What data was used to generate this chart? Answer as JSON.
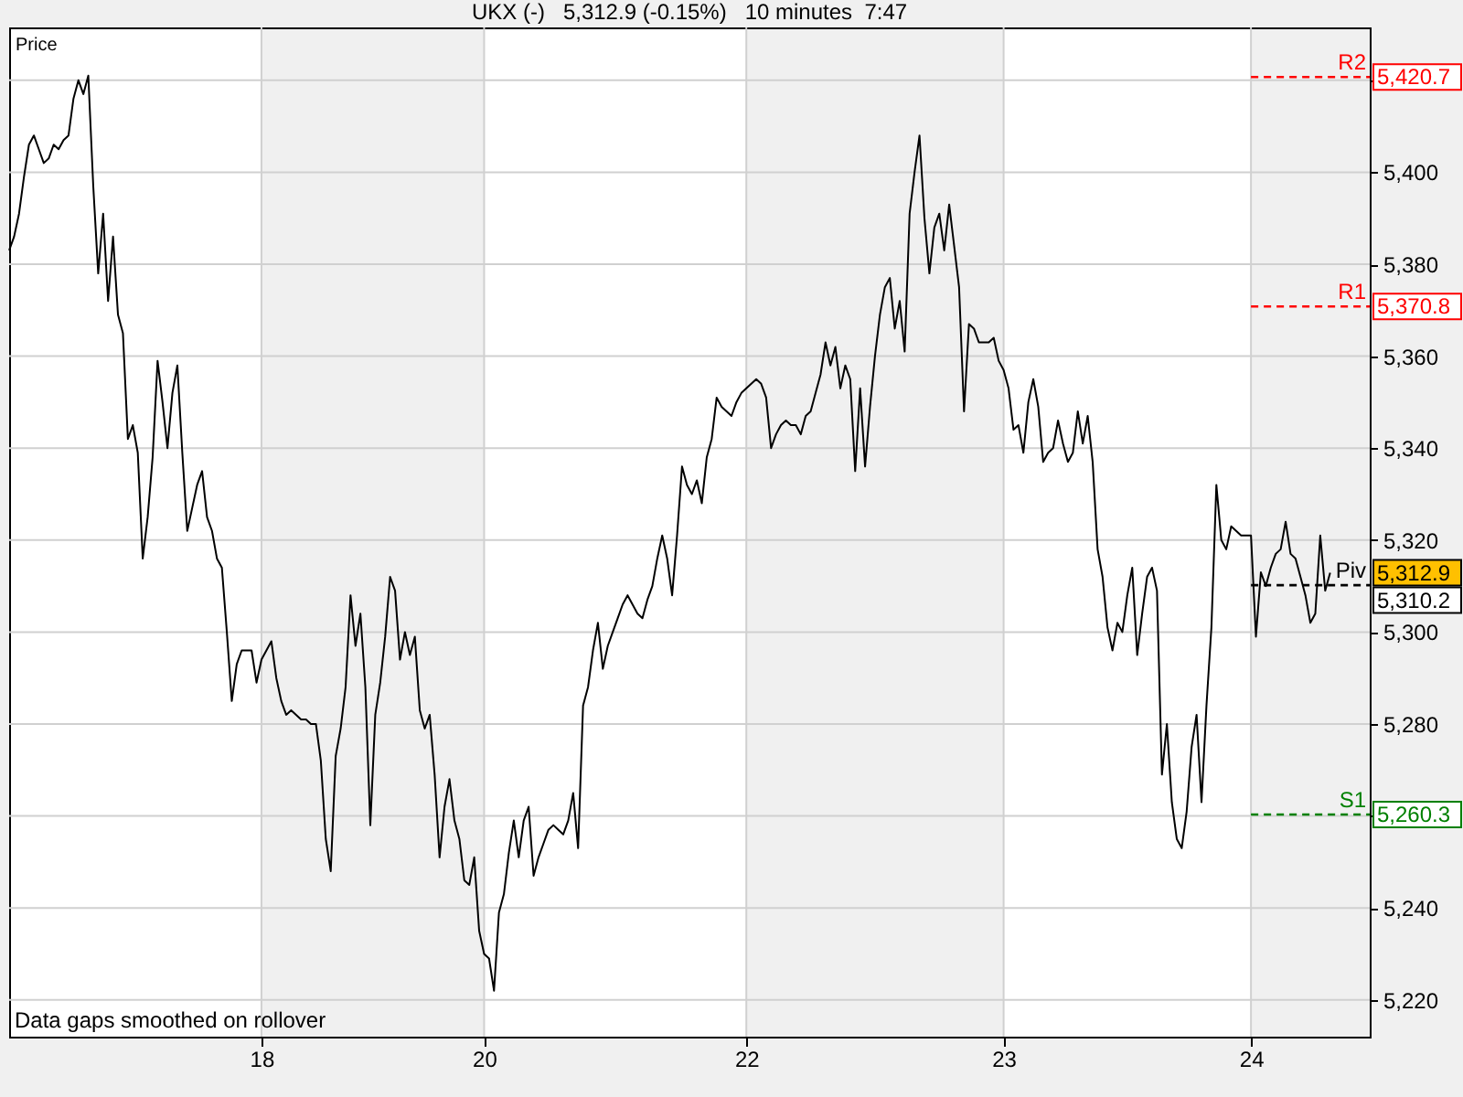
{
  "chart_data": {
    "type": "line",
    "title": "UKX (-)   5,312.9 (-0.15%)   10 minutes  7:47",
    "ylabel": "Price",
    "annotations": [
      "Data gaps smoothed on rollover",
      "5,312.9",
      "5,420.7",
      "5,370.8",
      "5,310.2",
      "5,260.3"
    ],
    "categories": [
      null,
      null,
      null,
      null,
      null,
      null,
      null,
      null,
      null,
      null,
      null,
      null,
      null,
      null,
      null,
      null,
      null,
      null,
      null,
      null,
      null,
      null,
      null,
      null,
      null,
      null,
      null,
      null,
      null,
      null,
      null,
      null,
      null,
      null,
      null,
      null,
      null,
      null,
      null,
      null,
      null,
      null,
      null,
      null,
      null,
      null,
      null,
      null,
      null,
      null,
      null,
      "18",
      null,
      null,
      null,
      null,
      null,
      null,
      null,
      null,
      null,
      null,
      null,
      null,
      null,
      null,
      null,
      null,
      null,
      null,
      null,
      null,
      null,
      null,
      null,
      null,
      null,
      null,
      null,
      null,
      null,
      null,
      null,
      null,
      null,
      null,
      null,
      null,
      null,
      null,
      null,
      null,
      null,
      null,
      null,
      null,
      "20",
      null,
      null,
      null,
      null,
      null,
      null,
      null,
      null,
      null,
      null,
      null,
      null,
      null,
      null,
      null,
      null,
      null,
      null,
      null,
      null,
      null,
      null,
      null,
      null,
      null,
      null,
      null,
      null,
      null,
      null,
      null,
      null,
      null,
      null,
      null,
      null,
      null,
      null,
      null,
      null,
      null,
      null,
      null,
      null,
      null,
      null,
      null,
      null,
      null,
      null,
      null,
      null,
      "22",
      null,
      null,
      null,
      null,
      null,
      null,
      null,
      null,
      null,
      null,
      null,
      null,
      null,
      null,
      null,
      null,
      null,
      null,
      null,
      null,
      null,
      null,
      null,
      null,
      null,
      null,
      null,
      null,
      null,
      null,
      null,
      null,
      null,
      null,
      null,
      null,
      null,
      null,
      null,
      null,
      null,
      null,
      null,
      null,
      null,
      null,
      null,
      null,
      null,
      null,
      null,
      "23",
      null,
      null,
      null,
      null,
      null,
      null,
      null,
      null,
      null,
      null,
      null,
      null,
      null,
      null,
      null,
      null,
      null,
      null,
      null,
      null,
      null,
      null,
      null,
      null,
      null,
      null,
      null,
      null,
      null,
      null,
      null,
      null,
      null,
      null,
      null,
      null,
      null,
      null,
      null,
      null,
      null,
      null,
      null,
      null,
      null,
      null,
      null,
      null,
      null,
      "24",
      null,
      null,
      null,
      null,
      null,
      null,
      null,
      null,
      null,
      null,
      null,
      null,
      null,
      null,
      null,
      null,
      null,
      null,
      null,
      null,
      null,
      null,
      null,
      null
    ],
    "series": [
      {
        "color": "#000000",
        "values": [
          5383,
          5386,
          5391,
          5399,
          5406,
          5408,
          5405,
          5402,
          5403,
          5406,
          5405,
          5407,
          5408,
          5416,
          5420,
          5417,
          5421,
          5397,
          5378,
          5391,
          5372,
          5386,
          5369,
          5365,
          5342,
          5345,
          5339,
          5316,
          5325,
          5338,
          5359,
          5350,
          5340,
          5352,
          5358,
          5339,
          5322,
          5327,
          5332,
          5335,
          5325,
          5322,
          5316,
          5314,
          5300,
          5285,
          5293,
          5296,
          5296,
          5296,
          5289,
          5294,
          5296,
          5298,
          5290,
          5285,
          5282,
          5283,
          5282,
          5281,
          5281,
          5280,
          5280,
          5272,
          5255,
          5248,
          5273,
          5279,
          5288,
          5308,
          5297,
          5304,
          5288,
          5258,
          5282,
          5289,
          5299,
          5312,
          5309,
          5294,
          5300,
          5295,
          5299,
          5283,
          5279,
          5282,
          5269,
          5251,
          5262,
          5268,
          5259,
          5255,
          5246,
          5245,
          5251,
          5235,
          5230,
          5229,
          5222,
          5239,
          5243,
          5252,
          5259,
          5251,
          5259,
          5262,
          5247,
          5251,
          5254,
          5257,
          5258,
          5257,
          5256,
          5259,
          5265,
          5253,
          5284,
          5288,
          5296,
          5302,
          5292,
          5297,
          5300,
          5303,
          5306,
          5308,
          5306,
          5304,
          5303,
          5307,
          5310,
          5316,
          5321,
          5316,
          5308,
          5321,
          5336,
          5332,
          5330,
          5333,
          5328,
          5338,
          5342,
          5351,
          5349,
          5348,
          5347,
          5350,
          5352,
          5353,
          5354,
          5355,
          5354,
          5351,
          5340,
          5343,
          5345,
          5346,
          5345,
          5345,
          5343,
          5347,
          5348,
          5352,
          5356,
          5363,
          5358,
          5362,
          5353,
          5358,
          5355,
          5335,
          5353,
          5336,
          5349,
          5360,
          5369,
          5375,
          5377,
          5366,
          5372,
          5361,
          5391,
          5400,
          5408,
          5390,
          5378,
          5388,
          5391,
          5383,
          5393,
          5384,
          5375,
          5348,
          5367,
          5366,
          5363,
          5363,
          5363,
          5364,
          5359,
          5357,
          5353,
          5344,
          5345,
          5339,
          5350,
          5355,
          5349,
          5337,
          5339,
          5340,
          5346,
          5341,
          5337,
          5339,
          5348,
          5341,
          5347,
          5337,
          5318,
          5312,
          5301,
          5296,
          5302,
          5300,
          5308,
          5314,
          5295,
          5304,
          5312,
          5314,
          5309,
          5269,
          5280,
          5263,
          5255,
          5253,
          5261,
          5275,
          5282,
          5263,
          5284,
          5301,
          5332,
          5320,
          5318,
          5323,
          5322,
          5321,
          5321,
          5321,
          5299,
          5313,
          5310,
          5314,
          5317,
          5318,
          5324,
          5317,
          5316,
          5312,
          5308,
          5302,
          5304,
          5321,
          5309,
          5312.9,
          null,
          null,
          null,
          null,
          null,
          null,
          null,
          null
        ]
      }
    ],
    "ylim": [
      5212,
      5431.5
    ],
    "yticks": [
      {
        "value": 5220,
        "label": "5,220"
      },
      {
        "value": 5240,
        "label": "5,240"
      },
      {
        "value": 5260,
        "label": null
      },
      {
        "value": 5280,
        "label": "5,280"
      },
      {
        "value": 5300,
        "label": "5,300"
      },
      {
        "value": 5320,
        "label": "5,320"
      },
      {
        "value": 5340,
        "label": "5,340"
      },
      {
        "value": 5360,
        "label": "5,360"
      },
      {
        "value": 5380,
        "label": "5,380"
      },
      {
        "value": 5400,
        "label": "5,400"
      },
      {
        "value": 5420,
        "label": null
      }
    ],
    "grid": true,
    "bands": [
      {
        "axis": "x",
        "from": "18",
        "to": "20",
        "color": "#f0f0f0"
      },
      {
        "axis": "x",
        "from": "22",
        "to": "23",
        "color": "#f0f0f0"
      }
    ],
    "ref_lines": [
      {
        "axis": "y",
        "value": 5420.7,
        "label": "R2",
        "color": "#ff0000",
        "line_style": "dashed"
      },
      {
        "axis": "y",
        "value": 5370.8,
        "label": "R1",
        "color": "#ff0000",
        "line_style": "dashed"
      },
      {
        "axis": "y",
        "value": 5310.2,
        "label": "Piv",
        "color": "#000000",
        "line_style": "dashed"
      },
      {
        "axis": "y",
        "value": 5260.3,
        "label": "S1",
        "color": "#008000",
        "line_style": "dashed"
      }
    ]
  }
}
